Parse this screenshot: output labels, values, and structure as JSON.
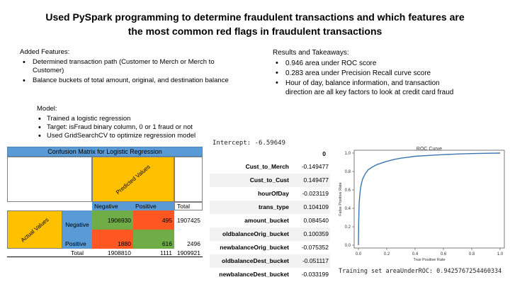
{
  "title": "Used PySpark programming to determine fraudulent transactions and which features are the most common red flags in fraudulent transactions",
  "features": {
    "heading": "Added Features:",
    "items": [
      "Determined transaction path (Customer to Merch or Merch to Customer)",
      "Balance buckets of total amount, original, and destination balance"
    ]
  },
  "model": {
    "heading": "Model:",
    "items": [
      "Trained a logistic regression",
      "Target: isFraud binary column, 0 or 1 fraud or not",
      "Used GridSearchCV to optimize regression model"
    ]
  },
  "results": {
    "heading": "Results and Takeaways:",
    "items": [
      "0.946 area under ROC score",
      "0.283 area under Precision Recall curve score",
      "Hour of day, balance information, and transaction direction are all key factors to look at credit card fraud"
    ]
  },
  "confusion_matrix": {
    "title": "Confusion Matrix for Logistic Regression",
    "predicted_label": "Predicted Values",
    "actual_label": "Actual Values",
    "col_negative": "Negative",
    "col_positive": "Positive",
    "col_total": "Total",
    "row_negative": "Negative",
    "row_positive": "Positive",
    "row_total": "Total",
    "tn": "1906930",
    "fp": "495",
    "neg_total": "1907425",
    "fn": "1880",
    "tp": "616",
    "pos_total": "2496",
    "pred_neg_total": "1908810",
    "pred_pos_total": "1111",
    "grand_total": "1909921",
    "colors": {
      "yellow": "#ffc000",
      "blue": "#5b9bd5",
      "green": "#70ad47",
      "orange": "#ff5722"
    }
  },
  "coefficients": {
    "intercept": "Intercept: -6.59649",
    "column_header": "0",
    "rows": [
      {
        "name": "Cust_to_Merch",
        "value": "-0.149477"
      },
      {
        "name": "Cust_to_Cust",
        "value": "0.149477"
      },
      {
        "name": "hourOfDay",
        "value": "-0.023119"
      },
      {
        "name": "trans_type",
        "value": "0.104109"
      },
      {
        "name": "amount_bucket",
        "value": "0.084540"
      },
      {
        "name": "oldbalanceOrig_bucket",
        "value": "0.100359"
      },
      {
        "name": "newbalanceOrig_bucket",
        "value": "-0.075352"
      },
      {
        "name": "oldbalanceDest_bucket",
        "value": "-0.051117"
      },
      {
        "name": "newbalanceDest_bucket",
        "value": "-0.033199"
      }
    ]
  },
  "chart_data": {
    "type": "line",
    "title": "ROC Curve",
    "xlabel": "True Positive Rate",
    "ylabel": "False Positive Rate",
    "xlim": [
      0,
      1
    ],
    "ylim": [
      0,
      1
    ],
    "xticks": [
      "0.0",
      "0.2",
      "0.4",
      "0.6",
      "0.8",
      "1.0"
    ],
    "yticks": [
      "0.0",
      "0.2",
      "0.4",
      "0.6",
      "0.8",
      "1.0"
    ],
    "grid": false,
    "color": "#3b75af",
    "x": [
      0,
      0.002,
      0.005,
      0.01,
      0.015,
      0.02,
      0.03,
      0.05,
      0.07,
      0.1,
      0.13,
      0.16,
      0.2,
      0.25,
      0.3,
      0.35,
      0.4,
      0.5,
      0.6,
      0.7,
      0.8,
      0.9,
      1.0
    ],
    "y": [
      0,
      0.25,
      0.45,
      0.55,
      0.62,
      0.66,
      0.72,
      0.78,
      0.82,
      0.85,
      0.875,
      0.89,
      0.91,
      0.93,
      0.945,
      0.955,
      0.965,
      0.975,
      0.983,
      0.99,
      0.995,
      0.998,
      1.0
    ]
  },
  "training_text": "Training set areaUnderROC: 0.9425767254460334"
}
